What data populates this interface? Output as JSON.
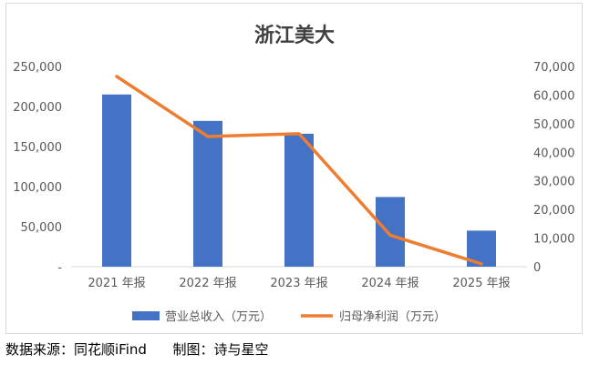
{
  "chart_data": {
    "type": "bar",
    "title": "浙江美大",
    "categories": [
      "2021 年报",
      "2022 年报",
      "2023 年报",
      "2024 年报",
      "2025 年报"
    ],
    "series": [
      {
        "name": "营业总收入（万元）",
        "type": "bar",
        "axis": "left",
        "color": "#4472C4",
        "values": [
          215000,
          182000,
          166000,
          87000,
          45000
        ]
      },
      {
        "name": "归母净利润（万元）",
        "type": "line",
        "axis": "right",
        "color": "#ED7D31",
        "values": [
          66500,
          45500,
          46500,
          11000,
          1000
        ]
      }
    ],
    "left_axis": {
      "ylim": [
        0,
        250000
      ],
      "ticks": [
        "-",
        "50,000",
        "100,000",
        "150,000",
        "200,000",
        "250,000"
      ]
    },
    "right_axis": {
      "ylim": [
        0,
        70000
      ],
      "ticks": [
        "0",
        "10,000",
        "20,000",
        "30,000",
        "40,000",
        "50,000",
        "60,000",
        "70,000"
      ]
    },
    "grid": false,
    "legend_position": "bottom"
  },
  "footer": {
    "source": "数据来源：同花顺iFind      制图：诗与星空"
  }
}
